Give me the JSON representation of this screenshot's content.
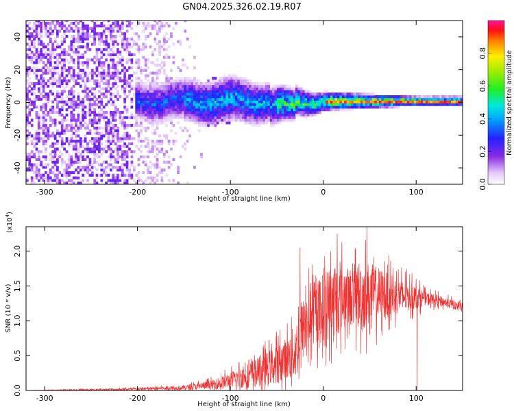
{
  "title": "GN04.2025.326.02.19.R07",
  "colors": {
    "snr_line": "#ee3333",
    "axes": "#000000",
    "background": "#ffffff"
  },
  "chart_data": [
    {
      "type": "heatmap",
      "title": "GN04.2025.326.02.19.R07",
      "xlabel": "Height of straight line (km)",
      "ylabel": "Frequency (Hz)",
      "xlim": [
        -320,
        150
      ],
      "ylim": [
        -50,
        50
      ],
      "x_ticks": [
        -300,
        -200,
        -100,
        0,
        100
      ],
      "y_ticks": [
        -40,
        -20,
        0,
        20,
        40
      ],
      "grid": false,
      "colorbar": {
        "label": "Normalized spectral amplitude",
        "range": [
          0,
          1
        ],
        "ticks": [
          0.0,
          0.2,
          0.4,
          0.6,
          0.8
        ],
        "colormap": "white-violet-blue-cyan-green-yellow-orange-red-magenta"
      },
      "description_values": {
        "noise_region_x": [
          -320,
          -130
        ],
        "signal_center_frequency": 0,
        "signal_band_halfwidth_at_x": [
          {
            "x": -200,
            "halfwidth": 8
          },
          {
            "x": -100,
            "halfwidth": 10
          },
          {
            "x": -50,
            "halfwidth": 8
          },
          {
            "x": 0,
            "halfwidth": 4
          },
          {
            "x": 100,
            "halfwidth": 2
          },
          {
            "x": 150,
            "halfwidth": 2
          }
        ]
      }
    },
    {
      "type": "line",
      "xlabel": "Height of straight line (km)",
      "ylabel": "SNR (10 * v/v)",
      "y_multiplier_label": "(x10⁴)",
      "xlim": [
        -320,
        150
      ],
      "ylim": [
        0,
        2.35
      ],
      "x_ticks": [
        -300,
        -200,
        -100,
        0,
        100
      ],
      "y_ticks": [
        0.0,
        0.5,
        1.0,
        1.5,
        2.0
      ],
      "grid": false,
      "series": [
        {
          "color": "#ee3333",
          "envelope": {
            "x": [
              -320,
              -250,
              -200,
              -150,
              -120,
              -100,
              -80,
              -60,
              -40,
              -30,
              -25,
              -20,
              -10,
              0,
              10,
              20,
              30,
              40,
              50,
              60,
              70,
              80,
              90,
              100,
              110,
              120,
              130,
              140,
              150
            ],
            "mean": [
              0.0,
              0.01,
              0.02,
              0.04,
              0.08,
              0.14,
              0.22,
              0.32,
              0.45,
              0.55,
              0.75,
              0.95,
              1.1,
              1.2,
              1.28,
              1.32,
              1.35,
              1.37,
              1.38,
              1.38,
              1.37,
              1.36,
              1.35,
              1.34,
              1.32,
              1.3,
              1.27,
              1.23,
              1.2
            ],
            "peak": [
              0.0,
              0.03,
              0.05,
              0.1,
              0.2,
              0.35,
              0.55,
              0.75,
              1.0,
              1.3,
              1.6,
              1.75,
              1.9,
              2.1,
              2.25,
              2.2,
              2.1,
              2.35,
              2.2,
              2.1,
              1.95,
              1.85,
              1.75,
              1.65,
              1.5,
              1.45,
              1.4,
              1.35,
              1.3
            ]
          },
          "spikes": [
            {
              "x": -25,
              "y": 2.05
            },
            {
              "x": 15,
              "y": 2.25
            },
            {
              "x": 47,
              "y": 2.35
            },
            {
              "x": 100,
              "y": 1.6
            },
            {
              "x": 101,
              "y": 0.0
            }
          ]
        }
      ]
    }
  ]
}
